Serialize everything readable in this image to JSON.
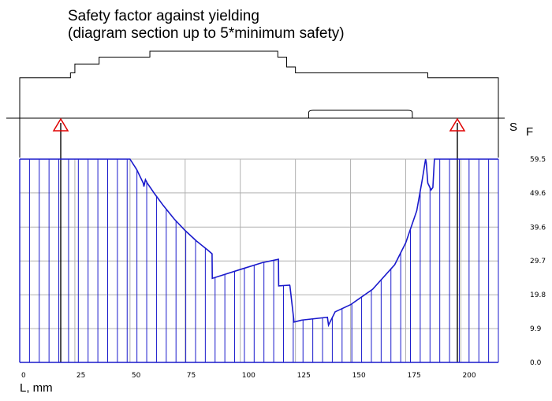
{
  "chart_data": {
    "type": "line",
    "title": "Safety factor against yielding",
    "subtitle": "(diagram section up to 5*minimum safety)",
    "xlabel": "L, mm",
    "ylabel_main": "S",
    "ylabel_sub": "F",
    "xlim": [
      0,
      217
    ],
    "ylim": [
      0,
      59.5
    ],
    "x_ticks": [
      0,
      25,
      50,
      75,
      100,
      125,
      150,
      175,
      200
    ],
    "x_tick_labels": [
      "0",
      "25",
      "50",
      "75",
      "100",
      "125",
      "150",
      "175",
      "200"
    ],
    "y_ticks": [
      0,
      9.9,
      19.8,
      29.7,
      39.6,
      49.6,
      59.5
    ],
    "y_tick_labels": [
      "0.0",
      "9.9",
      "19.8",
      "29.7",
      "39.6",
      "49.6",
      "59.5"
    ],
    "grid": true,
    "colors": {
      "series": "#1a1acc",
      "grid": "#b0b0b0",
      "bearing": "#e00000",
      "shaft": "#000000"
    },
    "bearings_x": [
      18.6,
      198.4
    ],
    "series": [
      {
        "x": [
          0,
          50,
          53,
          56,
          56.3,
          57,
          57.8,
          61,
          65,
          70,
          75,
          80,
          85,
          87.2,
          87.3,
          100,
          110,
          117.3,
          117.4,
          122.4,
          122.5,
          124.2,
          124.3,
          128,
          139.5,
          140,
          143,
          150,
          160,
          170,
          175,
          180,
          182.5,
          184,
          184.3,
          185,
          186.5,
          187.3,
          188,
          217
        ],
        "y": [
          59.5,
          59.5,
          56.5,
          52.5,
          51.5,
          53.5,
          52.5,
          49.5,
          46,
          42,
          38.6,
          35.6,
          33,
          31.8,
          24.6,
          27.2,
          29.2,
          30.2,
          22.4,
          22.6,
          22.4,
          12.8,
          11.8,
          12.4,
          13.2,
          10.9,
          14.8,
          16.9,
          21.4,
          28.6,
          35,
          44.4,
          53.5,
          59.5,
          58.5,
          52.5,
          50.5,
          51.2,
          59.5,
          59.5
        ]
      }
    ],
    "shaft_outline_mm": [
      {
        "from": 0,
        "to": 23,
        "top": 41
      },
      {
        "from": 23,
        "to": 25,
        "top": 46
      },
      {
        "from": 25,
        "to": 36,
        "top": 55
      },
      {
        "from": 36,
        "to": 37,
        "top": 62
      },
      {
        "from": 37,
        "to": 59,
        "top": 62
      },
      {
        "from": 59,
        "to": 117,
        "top": 68
      },
      {
        "from": 117,
        "to": 121,
        "top": 62
      },
      {
        "from": 121,
        "to": 125,
        "top": 52
      },
      {
        "from": 125,
        "to": 128,
        "top": 46
      },
      {
        "from": 128,
        "to": 185,
        "top": 46
      },
      {
        "from": 185,
        "to": 217,
        "top": 41
      }
    ]
  }
}
